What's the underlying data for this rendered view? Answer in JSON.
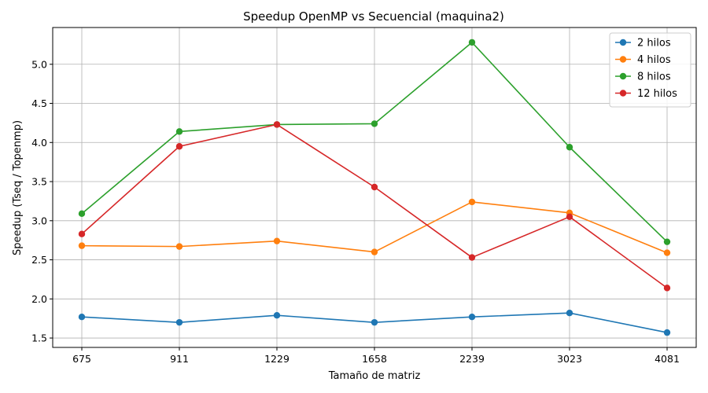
{
  "chart_data": {
    "type": "line",
    "title": "Speedup OpenMP vs Secuencial (maquina2)",
    "xlabel": "Tamaño de matriz",
    "ylabel": "Speedup (Tseq / Topenmp)",
    "categories": [
      "675",
      "911",
      "1229",
      "1658",
      "2239",
      "3023",
      "4081"
    ],
    "ylim": [
      1.38,
      5.47
    ],
    "yticks": [
      "1.5",
      "2.0",
      "2.5",
      "3.0",
      "3.5",
      "4.0",
      "4.5",
      "5.0"
    ],
    "grid": true,
    "legend_position": "top-right",
    "series": [
      {
        "name": "2 hilos",
        "color": "#1f77b4",
        "values": [
          1.77,
          1.7,
          1.79,
          1.7,
          1.77,
          1.82,
          1.57
        ]
      },
      {
        "name": "4 hilos",
        "color": "#ff7f0e",
        "values": [
          2.68,
          2.67,
          2.74,
          2.6,
          3.24,
          3.1,
          2.59
        ]
      },
      {
        "name": "8 hilos",
        "color": "#2ca02c",
        "values": [
          3.09,
          4.14,
          4.23,
          4.24,
          5.28,
          3.94,
          2.73
        ]
      },
      {
        "name": "12 hilos",
        "color": "#d62728",
        "values": [
          2.83,
          3.95,
          4.23,
          3.43,
          2.53,
          3.05,
          2.14
        ]
      }
    ]
  }
}
